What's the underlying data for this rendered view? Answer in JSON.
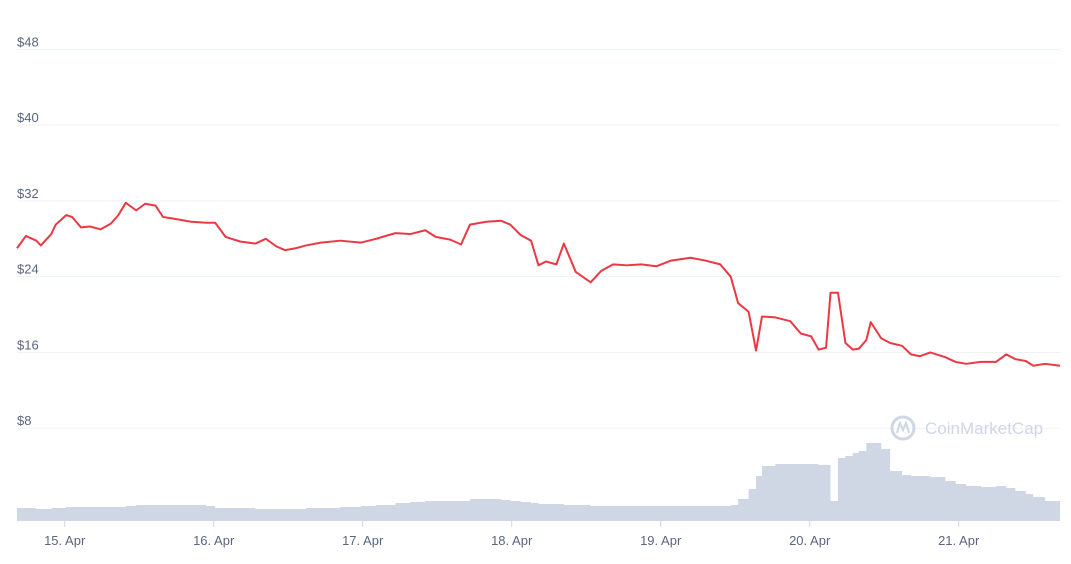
{
  "chart_data": {
    "type": "line",
    "watermark": "CoinMarketCap",
    "xlim": [
      14.68,
      21.68
    ],
    "xticks": [
      {
        "value": 15,
        "label": "15. Apr"
      },
      {
        "value": 16,
        "label": "16. Apr"
      },
      {
        "value": 17,
        "label": "17. Apr"
      },
      {
        "value": 18,
        "label": "18. Apr"
      },
      {
        "value": 19,
        "label": "19. Apr"
      },
      {
        "value": 20,
        "label": "20. Apr"
      },
      {
        "value": 21,
        "label": "21. Apr"
      }
    ],
    "ylim": [
      0,
      53
    ],
    "yticks": [
      {
        "value": 8,
        "label": "$8"
      },
      {
        "value": 16,
        "label": "$16"
      },
      {
        "value": 24,
        "label": "$24"
      },
      {
        "value": 32,
        "label": "$32"
      },
      {
        "value": 40,
        "label": "$40"
      },
      {
        "value": 48,
        "label": "$48"
      }
    ],
    "y2lim": [
      0,
      100
    ],
    "grid": true,
    "x": [
      14.68,
      14.74,
      14.81,
      14.84,
      14.91,
      14.94,
      15.01,
      15.05,
      15.11,
      15.17,
      15.24,
      15.31,
      15.36,
      15.41,
      15.48,
      15.54,
      15.61,
      15.66,
      15.74,
      15.85,
      15.95,
      16.01,
      16.08,
      16.18,
      16.28,
      16.35,
      16.42,
      16.48,
      16.55,
      16.62,
      16.72,
      16.85,
      16.99,
      17.09,
      17.22,
      17.32,
      17.42,
      17.49,
      17.59,
      17.66,
      17.72,
      17.83,
      17.93,
      17.99,
      18.06,
      18.13,
      18.18,
      18.23,
      18.3,
      18.35,
      18.43,
      18.53,
      18.6,
      18.68,
      18.77,
      18.87,
      18.97,
      19.07,
      19.2,
      19.3,
      19.4,
      19.47,
      19.52,
      19.59,
      19.64,
      19.68,
      19.77,
      19.87,
      19.94,
      20.01,
      20.06,
      20.11,
      20.14,
      20.19,
      20.24,
      20.29,
      20.33,
      20.38,
      20.41,
      20.48,
      20.54,
      20.62,
      20.68,
      20.74,
      20.81,
      20.91,
      20.98,
      21.05,
      21.15,
      21.25,
      21.32,
      21.38,
      21.45,
      21.5,
      21.58,
      21.68
    ],
    "series": [
      {
        "color": "#ea3943",
        "values": [
          27,
          28.3,
          27.8,
          27.3,
          28.5,
          29.5,
          30.5,
          30.3,
          29.2,
          29.3,
          29,
          29.6,
          30.5,
          31.8,
          31,
          31.7,
          31.5,
          30.3,
          30.1,
          29.8,
          29.7,
          29.7,
          28.2,
          27.7,
          27.5,
          28,
          27.2,
          26.8,
          27,
          27.3,
          27.6,
          27.8,
          27.6,
          28,
          28.6,
          28.5,
          28.9,
          28.2,
          27.9,
          27.4,
          29.5,
          29.8,
          29.9,
          29.5,
          28.4,
          27.8,
          25.2,
          25.6,
          25.3,
          27.5,
          24.5,
          23.4,
          24.6,
          25.3,
          25.2,
          25.3,
          25.1,
          25.7,
          26,
          25.7,
          25.3,
          24,
          21.2,
          20.3,
          16.2,
          19.8,
          19.7,
          19.3,
          18,
          17.7,
          16.3,
          16.5,
          22.3,
          22.3,
          17,
          16.3,
          16.4,
          17.3,
          19.2,
          17.5,
          17,
          16.7,
          15.8,
          15.6,
          16,
          15.5,
          15,
          14.8,
          15,
          15,
          15.8,
          15.3,
          15.1,
          14.6,
          14.8,
          14.6
        ]
      },
      {
        "color": "#cfd6e4",
        "axis": "y2",
        "values": [
          13,
          13,
          12,
          12,
          13,
          13,
          14,
          14,
          14,
          14,
          14,
          14,
          14,
          15,
          16,
          16,
          16,
          16,
          16,
          16,
          15,
          13,
          13,
          13,
          12,
          12,
          12,
          12,
          12,
          13,
          13,
          14,
          15,
          16,
          18,
          19,
          20,
          20,
          20,
          20,
          22,
          22,
          21,
          20,
          19,
          18,
          17,
          17,
          17,
          16,
          16,
          15,
          15,
          15,
          15,
          15,
          15,
          15,
          15,
          15,
          15,
          16,
          22,
          32,
          45,
          55,
          57,
          57,
          57,
          57,
          56,
          56,
          20,
          63,
          65,
          68,
          70,
          78,
          78,
          72,
          50,
          46,
          45,
          45,
          44,
          40,
          37,
          35,
          34,
          35,
          33,
          30,
          27,
          24,
          20,
          19
        ]
      }
    ]
  }
}
